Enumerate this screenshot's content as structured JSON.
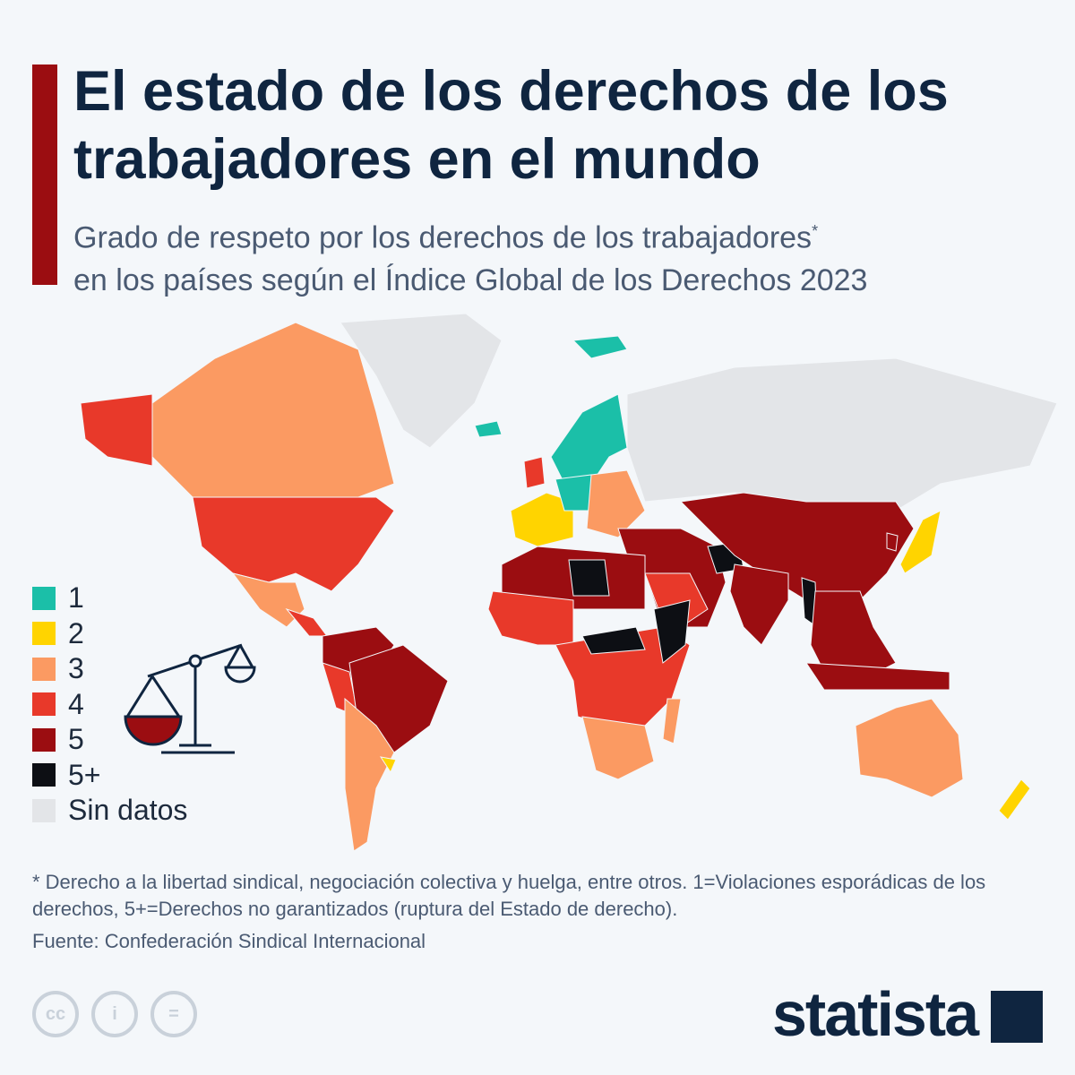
{
  "header": {
    "title": "El estado de los derechos de los trabajadores en el mundo",
    "subtitle": "Grado de respeto por los derechos de los trabajadores",
    "subtitle_mark": "*",
    "subtitle2": "en los países según el Índice Global de los Derechos 2023"
  },
  "legend": [
    {
      "label": "1",
      "color": "#1bbfa8"
    },
    {
      "label": "2",
      "color": "#ffd400"
    },
    {
      "label": "3",
      "color": "#fb9a62"
    },
    {
      "label": "4",
      "color": "#e8392a"
    },
    {
      "label": "5",
      "color": "#9b0d11"
    },
    {
      "label": "5+",
      "color": "#0d0f14"
    },
    {
      "label": "Sin datos",
      "color": "#e3e5e8"
    }
  ],
  "footer": {
    "note": "* Derecho a la libertad sindical, negociación colectiva y huelga, entre otros. 1=Violaciones esporádicas de los derechos, 5+=Derechos no garantizados (ruptura del Estado de derecho).",
    "source": "Fuente: Confederación Sindical Internacional",
    "cc_icons": [
      "cc",
      "i",
      "="
    ],
    "brand": "statista"
  }
}
